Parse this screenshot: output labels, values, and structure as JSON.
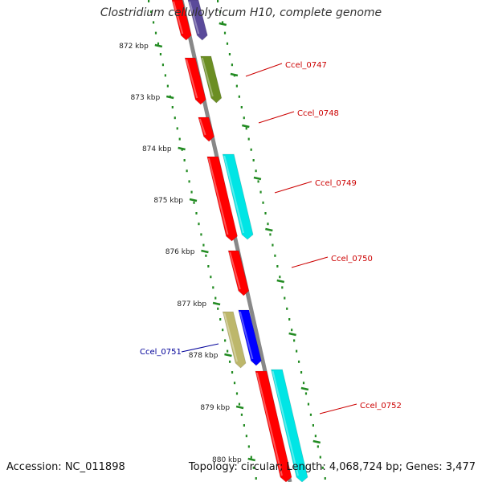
{
  "title": "Clostridium cellulolyticum H10, complete genome",
  "footer": {
    "accession": "Accession: NC_011898",
    "topology": "Topology: circular; Length: 4,068,724 bp; Genes: 3,477"
  },
  "colors": {
    "forward_cds": "#ff0000",
    "backbone": "#888888",
    "tick": "#228b22",
    "label_forward": "#cc0000",
    "label_reverse": "#000099",
    "purple_gene": "#5a4a9a",
    "olive_gene": "#6b8e23",
    "cyan_gene": "#00e5e5",
    "khaki_gene": "#bdb76b",
    "blue_gene": "#0000ff"
  },
  "kbp_labels": [
    "872 kbp",
    "873 kbp",
    "874 kbp",
    "875 kbp",
    "876 kbp",
    "877 kbp",
    "878 kbp",
    "879 kbp",
    "880 kbp"
  ],
  "gene_labels": [
    {
      "id": "Ccel_0747",
      "strand": "forward"
    },
    {
      "id": "Ccel_0748",
      "strand": "forward"
    },
    {
      "id": "Ccel_0749",
      "strand": "forward"
    },
    {
      "id": "Ccel_0750",
      "strand": "forward"
    },
    {
      "id": "Ccel_0751",
      "strand": "reverse"
    },
    {
      "id": "Ccel_0752",
      "strand": "forward"
    }
  ]
}
